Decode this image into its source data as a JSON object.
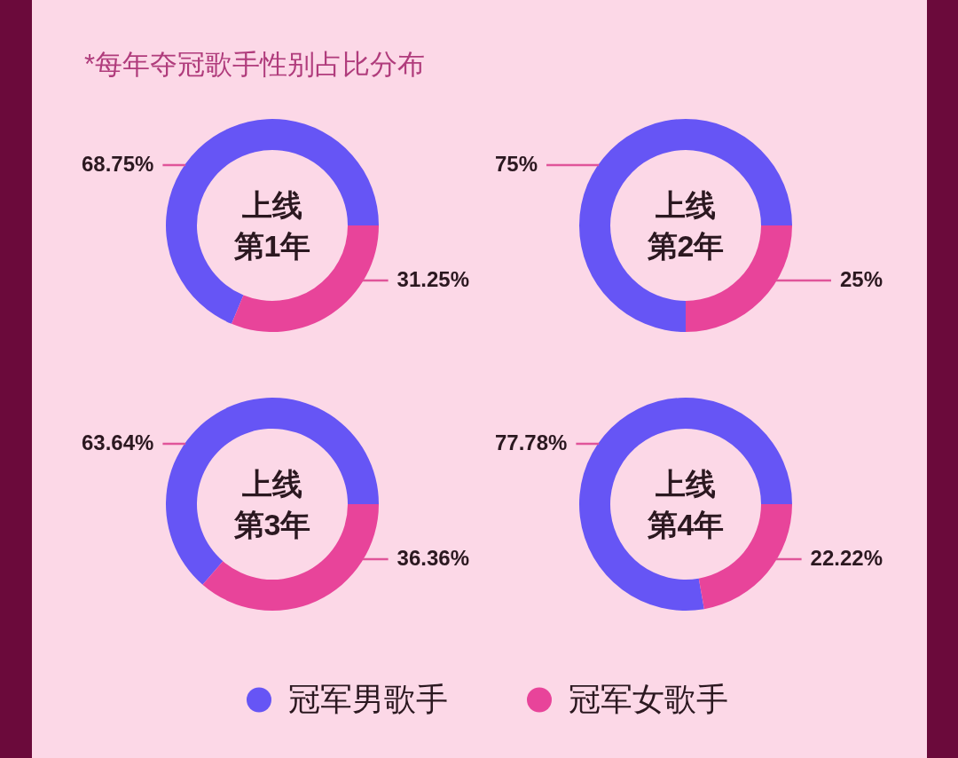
{
  "chart_data": [
    {
      "type": "donut",
      "title": "上线第1年",
      "annotations": [
        "*每年夺冠歌手性别占比分布"
      ],
      "categories": [
        "冠军男歌手",
        "冠军女歌手"
      ],
      "values": [
        68.75,
        31.25
      ],
      "value_labels": [
        "68.75%",
        "31.25%"
      ],
      "colors": [
        "#6655f5",
        "#e8449a"
      ],
      "legend": "bottom"
    },
    {
      "type": "donut",
      "title": "上线第2年",
      "categories": [
        null,
        null
      ],
      "values": [
        75,
        25
      ],
      "value_labels": [
        "75%",
        "25%"
      ],
      "colors": [
        "#6655f5",
        "#e8449a"
      ]
    },
    {
      "type": "donut",
      "title": "上线第3年",
      "categories": [
        null,
        null
      ],
      "values": [
        63.64,
        36.36
      ],
      "value_labels": [
        "63.64%",
        "36.36%"
      ],
      "colors": [
        "#6655f5",
        "#e8449a"
      ]
    },
    {
      "type": "donut",
      "title": "上线第4年",
      "categories": [
        null,
        null
      ],
      "values": [
        77.78,
        22.22
      ],
      "value_labels": [
        "77.78%",
        "22.22%"
      ],
      "colors": [
        "#6655f5",
        "#e8449a"
      ]
    }
  ]
}
